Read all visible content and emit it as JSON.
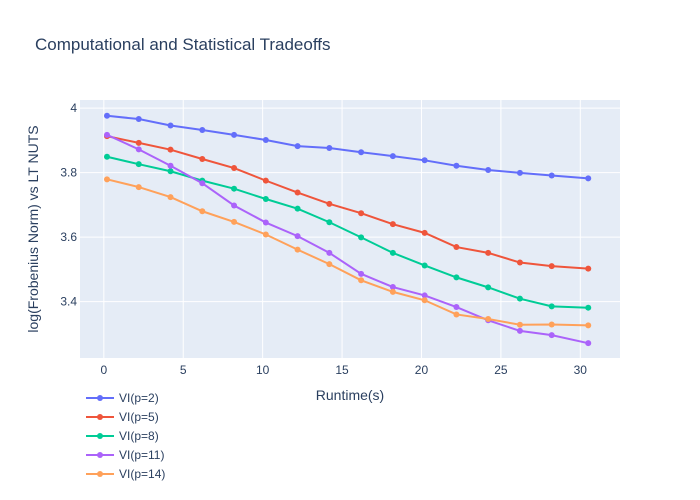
{
  "chart_data": {
    "type": "line",
    "title": "Computational and Statistical Tradeoffs",
    "xlabel": "Runtime(s)",
    "ylabel": "log(Frobenius Norm) vs LT NUTS",
    "xlim": [
      -1.5,
      32.5
    ],
    "ylim": [
      3.225,
      4.025
    ],
    "x_ticks": [
      0,
      5,
      10,
      15,
      20,
      25,
      30
    ],
    "y_ticks": [
      3.4,
      3.6,
      3.8,
      4.0
    ],
    "y_tick_labels": [
      "3.4",
      "3.6",
      "3.8",
      "4"
    ],
    "grid": true,
    "legend_position": "bottom-left",
    "x": [
      0.2,
      2.2,
      4.2,
      6.2,
      8.2,
      10.2,
      12.2,
      14.2,
      16.2,
      18.2,
      20.2,
      22.2,
      24.2,
      26.2,
      28.2,
      30.5
    ],
    "series": [
      {
        "name": "VI(p=2)",
        "color": "#636efa",
        "values": [
          3.976,
          3.966,
          3.946,
          3.932,
          3.917,
          3.901,
          3.882,
          3.876,
          3.863,
          3.851,
          3.838,
          3.821,
          3.808,
          3.799,
          3.791,
          3.782
        ]
      },
      {
        "name": "VI(p=5)",
        "color": "#ef553b",
        "values": [
          3.913,
          3.892,
          3.871,
          3.842,
          3.814,
          3.775,
          3.738,
          3.703,
          3.674,
          3.64,
          3.613,
          3.569,
          3.551,
          3.521,
          3.51,
          3.502
        ]
      },
      {
        "name": "VI(p=8)",
        "color": "#00cc96",
        "values": [
          3.849,
          3.826,
          3.804,
          3.775,
          3.75,
          3.718,
          3.688,
          3.646,
          3.599,
          3.551,
          3.512,
          3.475,
          3.444,
          3.409,
          3.385,
          3.381
        ]
      },
      {
        "name": "VI(p=11)",
        "color": "#ab63fa",
        "values": [
          3.917,
          3.872,
          3.821,
          3.767,
          3.698,
          3.645,
          3.603,
          3.551,
          3.486,
          3.445,
          3.419,
          3.383,
          3.342,
          3.309,
          3.296,
          3.271
        ]
      },
      {
        "name": "VI(p=14)",
        "color": "#ffa15a",
        "values": [
          3.779,
          3.755,
          3.724,
          3.68,
          3.647,
          3.608,
          3.561,
          3.516,
          3.466,
          3.43,
          3.404,
          3.36,
          3.346,
          3.328,
          3.329,
          3.326
        ]
      }
    ]
  }
}
